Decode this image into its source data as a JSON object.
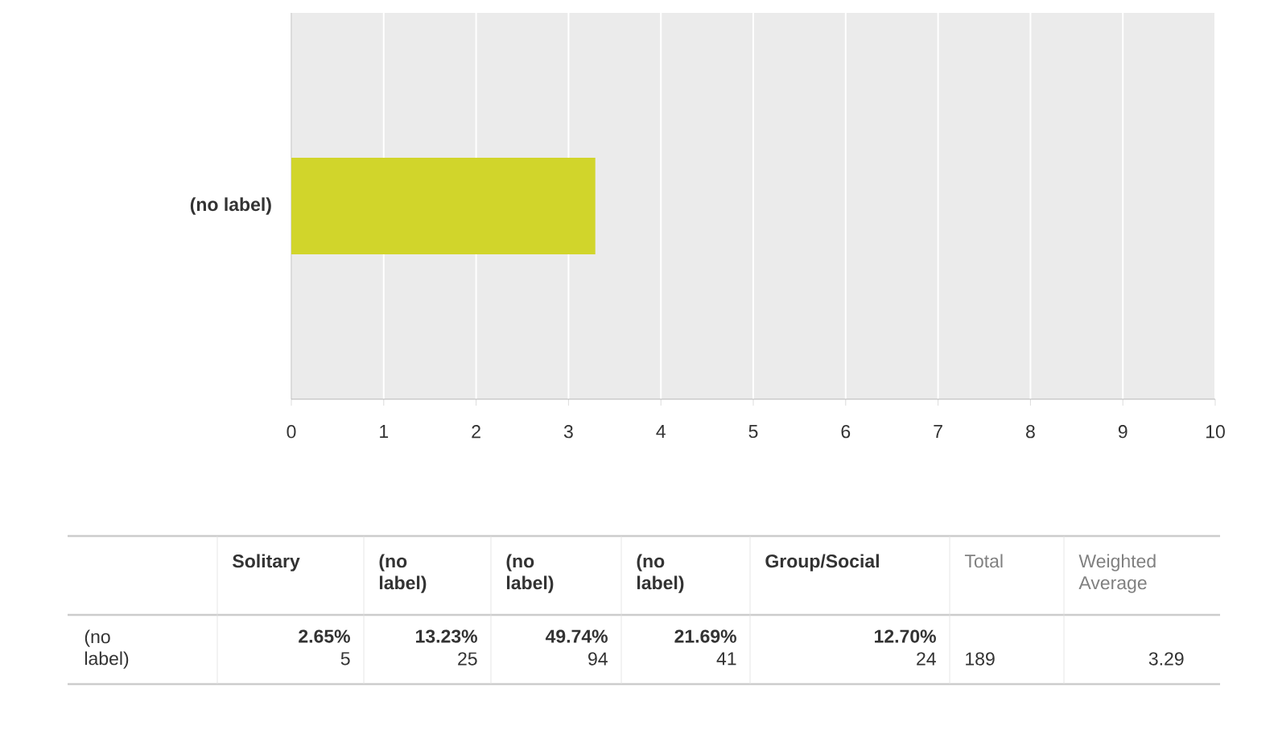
{
  "chart_data": {
    "type": "bar",
    "orientation": "horizontal",
    "categories": [
      "(no label)"
    ],
    "values": [
      3.29
    ],
    "color": "#d1d52b",
    "xlim": [
      0,
      10
    ],
    "xticks": [
      0,
      1,
      2,
      3,
      4,
      5,
      6,
      7,
      8,
      9,
      10
    ],
    "grid": "x",
    "annotations": [
      "Solitary",
      "(no label)",
      "(no label)",
      "(no label)",
      "Group/Social",
      "Total",
      "Weighted Average",
      "(no label)",
      "2.65%",
      "13.23%",
      "49.74%",
      "21.69%",
      "12.70%",
      "5",
      "25",
      "94",
      "41",
      "24",
      "189",
      "3.29"
    ]
  }
}
